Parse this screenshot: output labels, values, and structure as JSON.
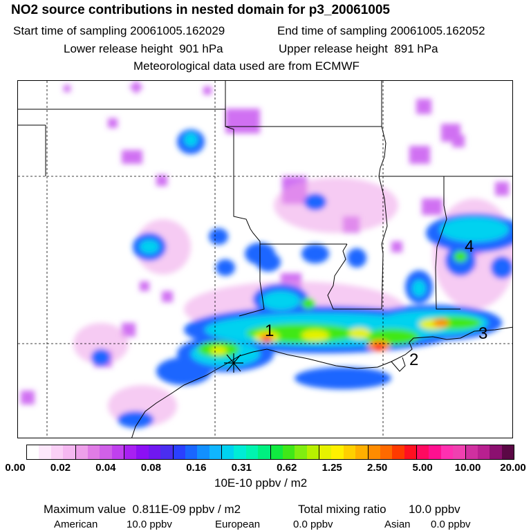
{
  "header": {
    "title": "NO2 source contributions in nested domain for p3_20061005",
    "start_label": "Start time of sampling",
    "start_value": "20061005.162029",
    "end_label": "End time of sampling",
    "end_value": "20061005.162052",
    "lower_label": "Lower release height",
    "lower_value": "901 hPa",
    "upper_label": "Upper release height",
    "upper_value": "891 hPa",
    "met_line": "Meteorological data used are from ECMWF"
  },
  "map": {
    "source_labels": [
      "1",
      "2",
      "3",
      "4"
    ]
  },
  "colorbar": {
    "colors": [
      "#ffffff",
      "#fde8fb",
      "#fad0f6",
      "#f5b8f1",
      "#eea0ea",
      "#e07ce6",
      "#d060e8",
      "#c040ee",
      "#a820f2",
      "#8c10f4",
      "#7018f0",
      "#4a2ef0",
      "#2a40ff",
      "#1a66ff",
      "#1290ff",
      "#10b6ff",
      "#00d2f0",
      "#00ecd6",
      "#00f4b0",
      "#00f080",
      "#10ea40",
      "#40e818",
      "#80ee10",
      "#b8f000",
      "#e6f200",
      "#fff000",
      "#ffd000",
      "#ffb000",
      "#ff8c00",
      "#ff6a00",
      "#ff3a00",
      "#ff1020",
      "#ff0a60",
      "#ff1090",
      "#ff30b0",
      "#f040b0",
      "#d030a0",
      "#b82090",
      "#8c1070",
      "#5a0845"
    ],
    "tick_labels": [
      "0.00",
      "0.02",
      "0.04",
      "0.08",
      "0.16",
      "0.31",
      "0.62",
      "1.25",
      "2.50",
      "5.00",
      "10.00",
      "20.00"
    ],
    "units": "10E-10 ppbv / m2"
  },
  "footer": {
    "max_label": "Maximum value",
    "max_value": "0.811E-09 ppbv / m2",
    "total_label": "Total mixing ratio",
    "total_value": "10.0 ppbv",
    "american_label": "American",
    "american_value": "10.0 ppbv",
    "european_label": "European",
    "european_value": "0.0 ppbv",
    "asian_label": "Asian",
    "asian_value": "0.0 ppbv"
  }
}
